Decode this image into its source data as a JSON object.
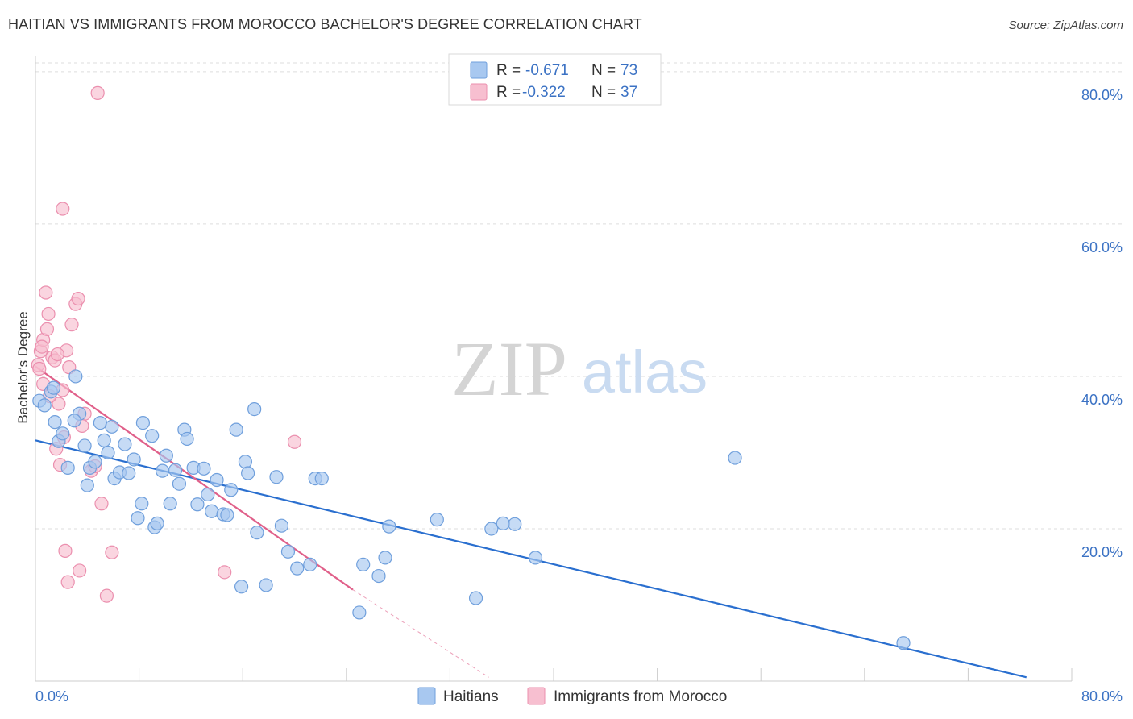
{
  "title": "HAITIAN VS IMMIGRANTS FROM MOROCCO BACHELOR'S DEGREE CORRELATION CHART",
  "source": "Source: ZipAtlas.com",
  "watermark": {
    "zip": "ZIP",
    "atlas": "atlas"
  },
  "legend_stats": [
    {
      "r_label": "R =",
      "r_value": "-0.671",
      "n_label": "N =",
      "n_value": "73"
    },
    {
      "r_label": "R =",
      "r_value": "-0.322",
      "n_label": "N =",
      "n_value": "37"
    }
  ],
  "chart_data": {
    "type": "scatter",
    "title": "HAITIAN VS IMMIGRANTS FROM MOROCCO BACHELOR'S DEGREE CORRELATION CHART",
    "xlabel": "",
    "ylabel": "Bachelor's Degree",
    "xlim": [
      0,
      80
    ],
    "ylim": [
      0,
      82
    ],
    "x_tick_labels": [
      "0.0%",
      "80.0%"
    ],
    "y_ticks": [
      20,
      40,
      60,
      80
    ],
    "y_tick_labels": [
      "20.0%",
      "40.0%",
      "60.0%",
      "80.0%"
    ],
    "grid": true,
    "colors": {
      "haitians_fill": "#a8c8f0",
      "haitians_stroke": "#6f9fdc",
      "haitians_line": "#2a6fcf",
      "morocco_fill": "#f7bfd0",
      "morocco_stroke": "#eb8fae",
      "morocco_line": "#e0608a",
      "tick_text": "#3b72c4",
      "grid": "#dddddd"
    },
    "series": [
      {
        "name": "Haitians",
        "r": -0.671,
        "n": 73,
        "trend": {
          "x0": 0,
          "y0": 31.6,
          "x1": 76.5,
          "y1": 0.5
        },
        "points": [
          [
            0.3,
            36.8
          ],
          [
            0.7,
            36.2
          ],
          [
            1.2,
            38.0
          ],
          [
            1.4,
            38.5
          ],
          [
            3.1,
            40.0
          ],
          [
            3.4,
            35.1
          ],
          [
            3.0,
            34.2
          ],
          [
            1.8,
            31.5
          ],
          [
            2.1,
            32.5
          ],
          [
            3.8,
            30.9
          ],
          [
            4.0,
            25.7
          ],
          [
            4.2,
            28.0
          ],
          [
            4.6,
            28.8
          ],
          [
            5.0,
            33.9
          ],
          [
            5.3,
            31.6
          ],
          [
            5.6,
            30.0
          ],
          [
            5.9,
            33.4
          ],
          [
            6.1,
            26.6
          ],
          [
            6.5,
            27.4
          ],
          [
            6.9,
            31.1
          ],
          [
            7.2,
            27.3
          ],
          [
            7.6,
            29.1
          ],
          [
            7.9,
            21.4
          ],
          [
            8.2,
            23.3
          ],
          [
            8.3,
            33.9
          ],
          [
            9.0,
            32.2
          ],
          [
            9.2,
            20.2
          ],
          [
            9.4,
            20.7
          ],
          [
            9.8,
            27.6
          ],
          [
            10.1,
            29.6
          ],
          [
            10.4,
            23.3
          ],
          [
            10.8,
            27.7
          ],
          [
            11.1,
            25.9
          ],
          [
            11.5,
            33.0
          ],
          [
            11.7,
            31.8
          ],
          [
            12.2,
            28.0
          ],
          [
            12.5,
            23.2
          ],
          [
            13.0,
            27.9
          ],
          [
            13.3,
            24.5
          ],
          [
            13.6,
            22.3
          ],
          [
            14.0,
            26.4
          ],
          [
            14.5,
            21.9
          ],
          [
            14.8,
            21.8
          ],
          [
            15.1,
            25.1
          ],
          [
            15.5,
            33.0
          ],
          [
            15.9,
            12.4
          ],
          [
            16.2,
            28.8
          ],
          [
            16.4,
            27.3
          ],
          [
            16.9,
            35.7
          ],
          [
            17.1,
            19.5
          ],
          [
            17.8,
            12.6
          ],
          [
            18.6,
            26.8
          ],
          [
            19.0,
            20.4
          ],
          [
            19.5,
            17.0
          ],
          [
            20.2,
            14.8
          ],
          [
            21.2,
            15.3
          ],
          [
            21.6,
            26.6
          ],
          [
            22.1,
            26.6
          ],
          [
            25.0,
            9.0
          ],
          [
            25.3,
            15.3
          ],
          [
            26.5,
            13.8
          ],
          [
            27.0,
            16.2
          ],
          [
            27.3,
            20.3
          ],
          [
            31.0,
            21.2
          ],
          [
            34.0,
            10.9
          ],
          [
            35.2,
            20.0
          ],
          [
            36.1,
            20.7
          ],
          [
            37.0,
            20.6
          ],
          [
            38.6,
            16.2
          ],
          [
            54.0,
            29.3
          ],
          [
            67.0,
            5.0
          ],
          [
            1.5,
            34.0
          ],
          [
            2.5,
            28.0
          ]
        ]
      },
      {
        "name": "Immigrants from Morocco",
        "r": -0.322,
        "n": 37,
        "trend": {
          "x0": 0,
          "y0": 41.3,
          "x1": 24.5,
          "y1": 12.0
        },
        "trend_dashed": {
          "x0": 24.5,
          "y0": 12.0,
          "x1": 35.0,
          "y1": 0.5
        },
        "points": [
          [
            0.2,
            41.5
          ],
          [
            0.4,
            43.3
          ],
          [
            0.6,
            44.8
          ],
          [
            0.9,
            46.2
          ],
          [
            1.3,
            42.5
          ],
          [
            1.5,
            42.1
          ],
          [
            1.8,
            36.4
          ],
          [
            2.1,
            38.2
          ],
          [
            2.4,
            43.4
          ],
          [
            2.8,
            46.8
          ],
          [
            3.1,
            49.5
          ],
          [
            3.3,
            50.2
          ],
          [
            0.8,
            51.0
          ],
          [
            1.0,
            48.2
          ],
          [
            1.6,
            30.5
          ],
          [
            1.9,
            28.4
          ],
          [
            2.2,
            32.0
          ],
          [
            2.3,
            17.1
          ],
          [
            2.5,
            13.0
          ],
          [
            3.4,
            14.5
          ],
          [
            3.8,
            35.1
          ],
          [
            4.3,
            27.6
          ],
          [
            4.6,
            28.2
          ],
          [
            5.1,
            23.3
          ],
          [
            5.5,
            11.2
          ],
          [
            5.9,
            16.9
          ],
          [
            0.6,
            39.0
          ],
          [
            1.1,
            37.4
          ],
          [
            0.3,
            41.0
          ],
          [
            2.1,
            62.0
          ],
          [
            4.8,
            77.2
          ],
          [
            14.6,
            14.3
          ],
          [
            20.0,
            31.4
          ],
          [
            1.7,
            42.9
          ],
          [
            2.6,
            41.2
          ],
          [
            0.5,
            43.9
          ],
          [
            3.6,
            33.5
          ]
        ]
      }
    ]
  },
  "bottom_legend": {
    "items": [
      {
        "label": "Haitians"
      },
      {
        "label": "Immigrants from Morocco"
      }
    ]
  }
}
